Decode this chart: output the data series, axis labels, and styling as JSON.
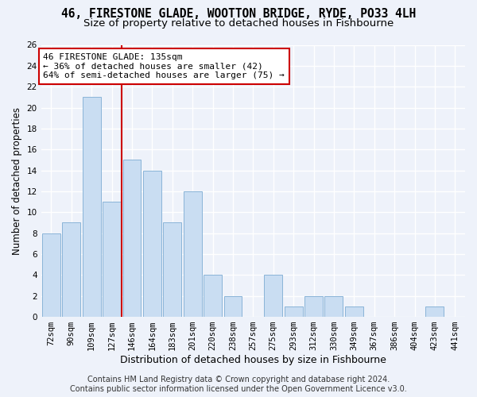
{
  "title": "46, FIRESTONE GLADE, WOOTTON BRIDGE, RYDE, PO33 4LH",
  "subtitle": "Size of property relative to detached houses in Fishbourne",
  "xlabel": "Distribution of detached houses by size in Fishbourne",
  "ylabel": "Number of detached properties",
  "categories": [
    "72sqm",
    "90sqm",
    "109sqm",
    "127sqm",
    "146sqm",
    "164sqm",
    "183sqm",
    "201sqm",
    "220sqm",
    "238sqm",
    "257sqm",
    "275sqm",
    "293sqm",
    "312sqm",
    "330sqm",
    "349sqm",
    "367sqm",
    "386sqm",
    "404sqm",
    "423sqm",
    "441sqm"
  ],
  "values": [
    8,
    9,
    21,
    11,
    15,
    14,
    9,
    12,
    4,
    2,
    0,
    4,
    1,
    2,
    2,
    1,
    0,
    0,
    0,
    1,
    0
  ],
  "bar_color": "#c9ddf2",
  "bar_edge_color": "#8ab4d8",
  "property_line_x": 3.5,
  "property_label": "46 FIRESTONE GLADE: 135sqm",
  "annotation_smaller": "← 36% of detached houses are smaller (42)",
  "annotation_larger": "64% of semi-detached houses are larger (75) →",
  "annotation_box_color": "#ffffff",
  "annotation_box_edge": "#cc0000",
  "vline_color": "#cc0000",
  "ylim": [
    0,
    26
  ],
  "yticks": [
    0,
    2,
    4,
    6,
    8,
    10,
    12,
    14,
    16,
    18,
    20,
    22,
    24,
    26
  ],
  "footer_line1": "Contains HM Land Registry data © Crown copyright and database right 2024.",
  "footer_line2": "Contains public sector information licensed under the Open Government Licence v3.0.",
  "bg_color": "#eef2fa",
  "grid_color": "#ffffff",
  "title_fontsize": 10.5,
  "subtitle_fontsize": 9.5,
  "axis_label_fontsize": 8.5,
  "tick_fontsize": 7.5,
  "footer_fontsize": 7.0,
  "annot_fontsize": 8.0
}
